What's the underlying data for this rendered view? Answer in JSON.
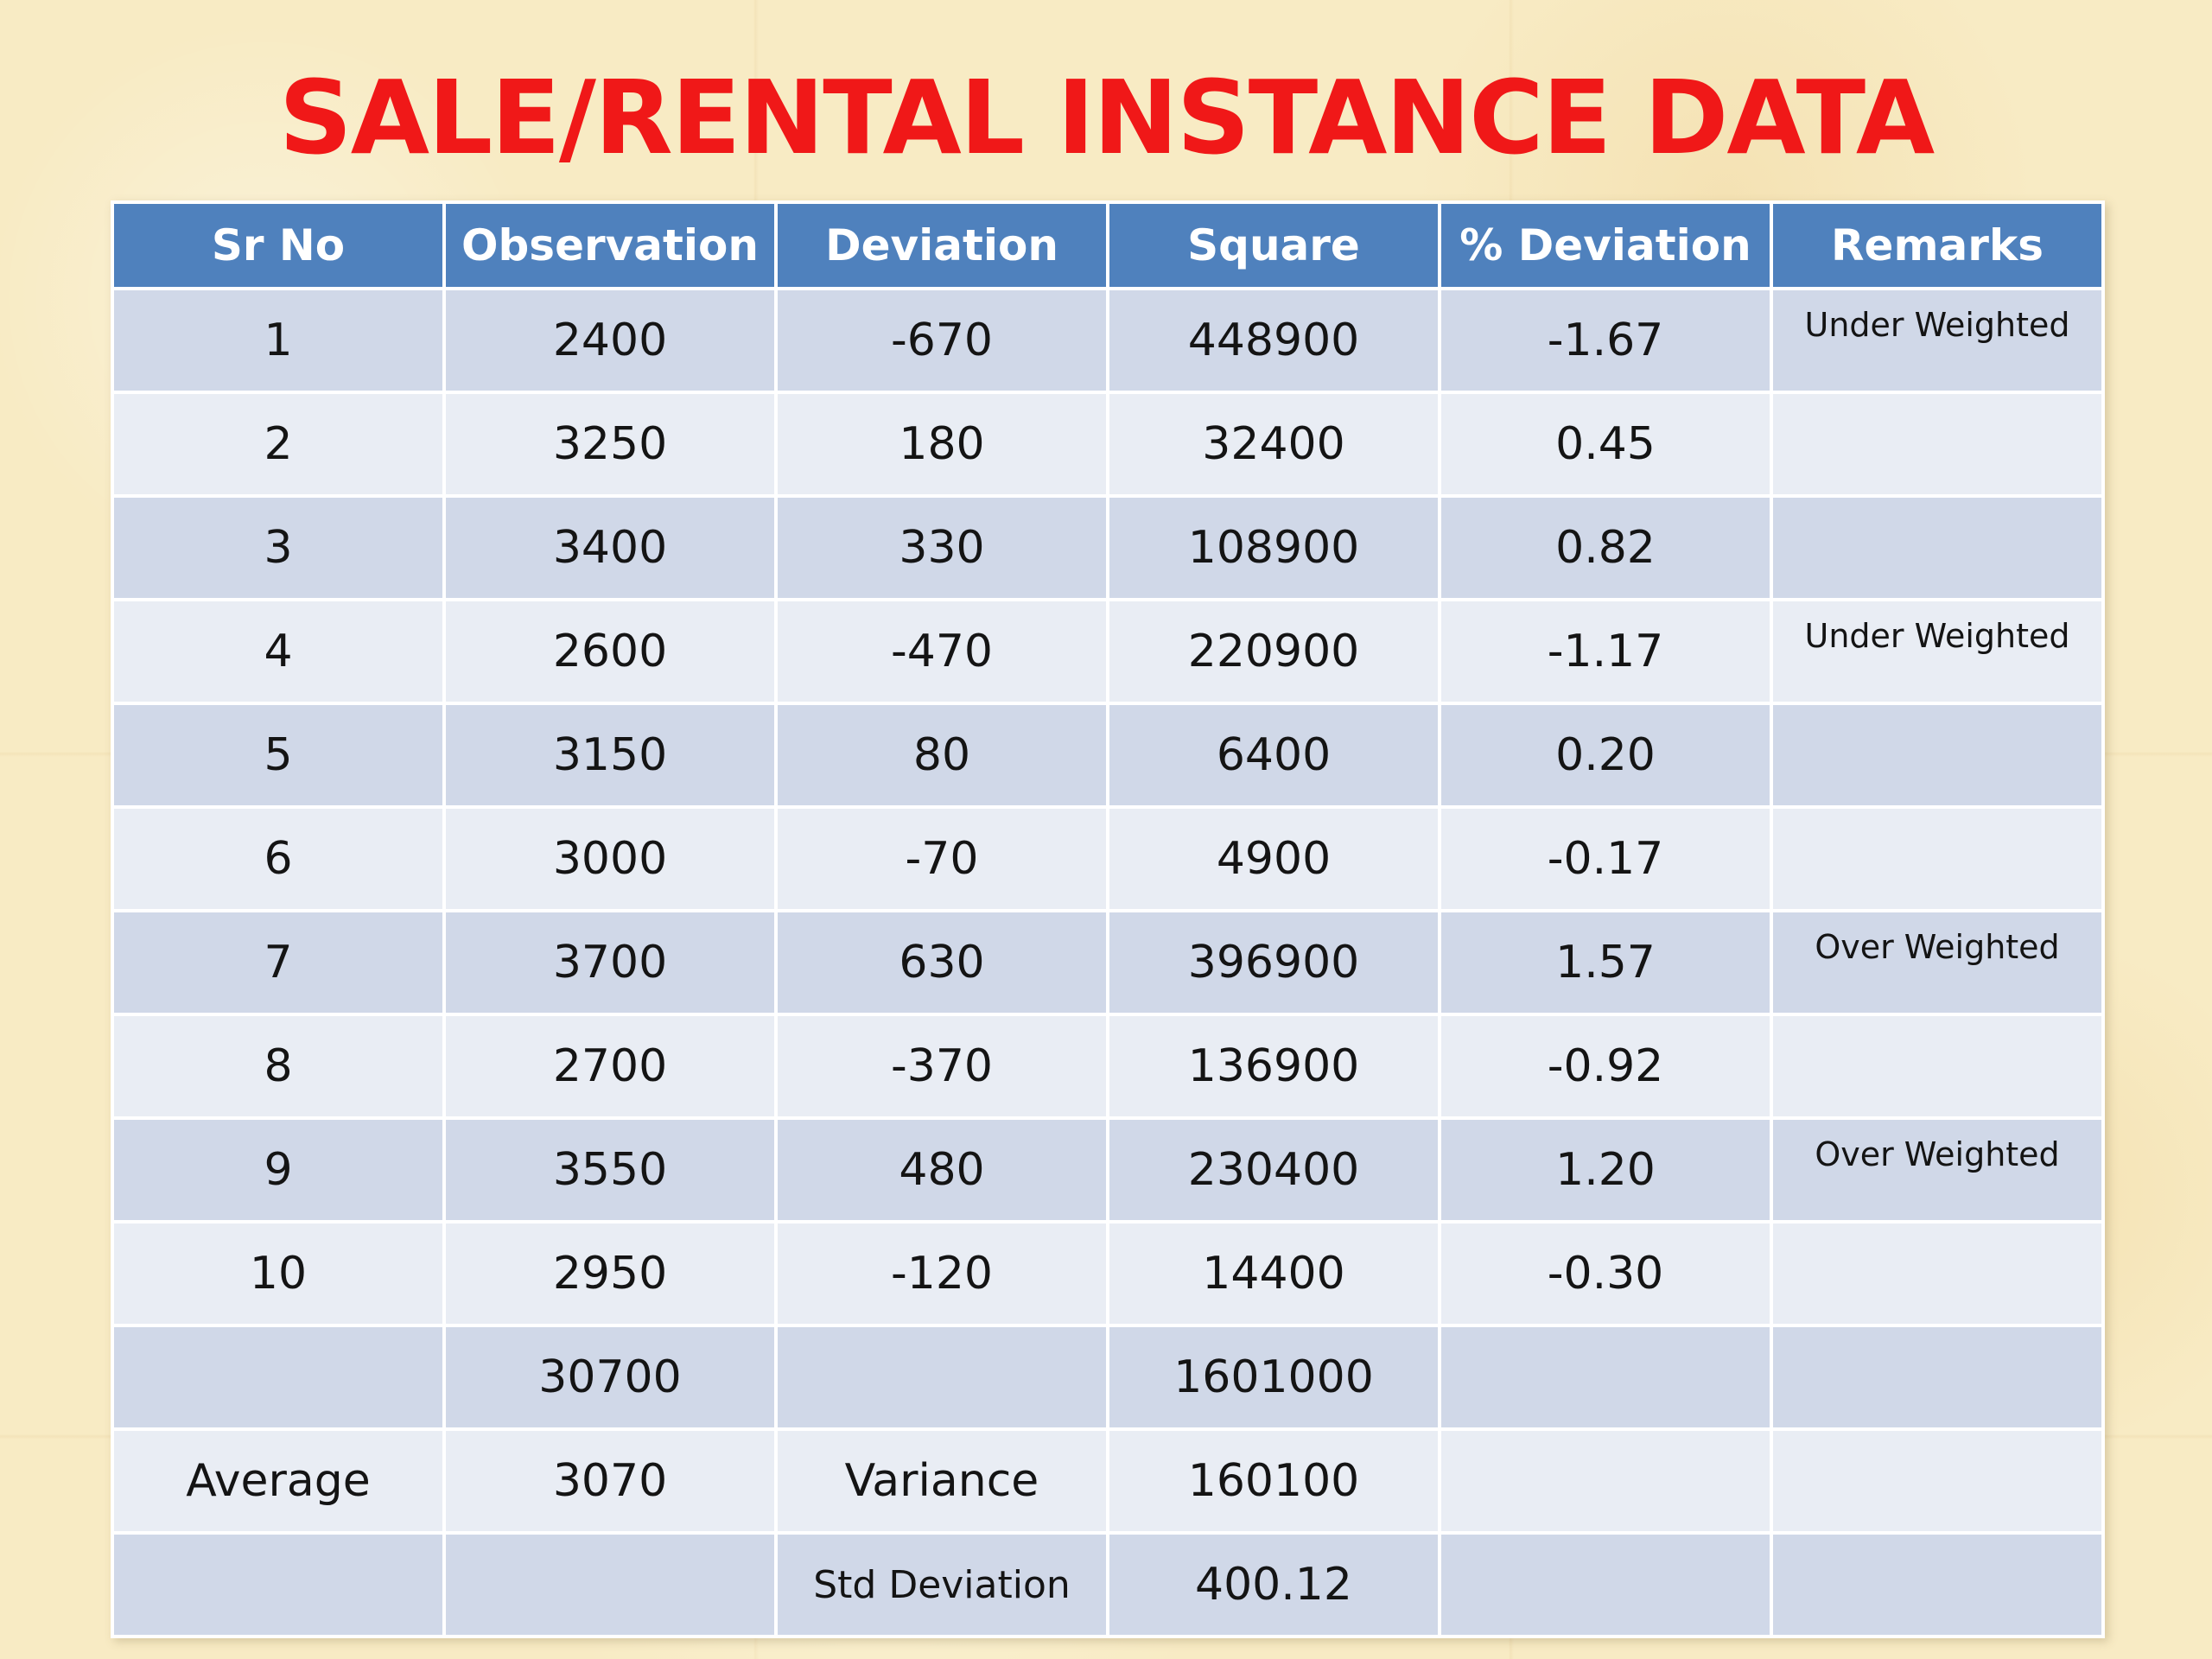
{
  "title": "SALE/RENTAL INSTANCE DATA",
  "table": {
    "headers": [
      "Sr No",
      "Observation",
      "Deviation",
      "Square",
      "% Deviation",
      "Remarks"
    ],
    "rows": [
      [
        "1",
        "2400",
        "-670",
        "448900",
        "-1.67",
        "Under Weighted"
      ],
      [
        "2",
        "3250",
        "180",
        "32400",
        "0.45",
        ""
      ],
      [
        "3",
        "3400",
        "330",
        "108900",
        "0.82",
        ""
      ],
      [
        "4",
        "2600",
        "-470",
        "220900",
        "-1.17",
        "Under Weighted"
      ],
      [
        "5",
        "3150",
        "80",
        "6400",
        "0.20",
        ""
      ],
      [
        "6",
        "3000",
        "-70",
        "4900",
        "-0.17",
        ""
      ],
      [
        "7",
        "3700",
        "630",
        "396900",
        "1.57",
        "Over Weighted"
      ],
      [
        "8",
        "2700",
        "-370",
        "136900",
        "-0.92",
        ""
      ],
      [
        "9",
        "3550",
        "480",
        "230400",
        "1.20",
        "Over Weighted"
      ],
      [
        "10",
        "2950",
        "-120",
        "14400",
        "-0.30",
        ""
      ],
      [
        "",
        "30700",
        "",
        "1601000",
        "",
        ""
      ],
      [
        "Average",
        "3070",
        "Variance",
        "160100",
        "",
        ""
      ],
      [
        "",
        "",
        "Std Deviation",
        "400.12",
        "",
        ""
      ]
    ]
  }
}
